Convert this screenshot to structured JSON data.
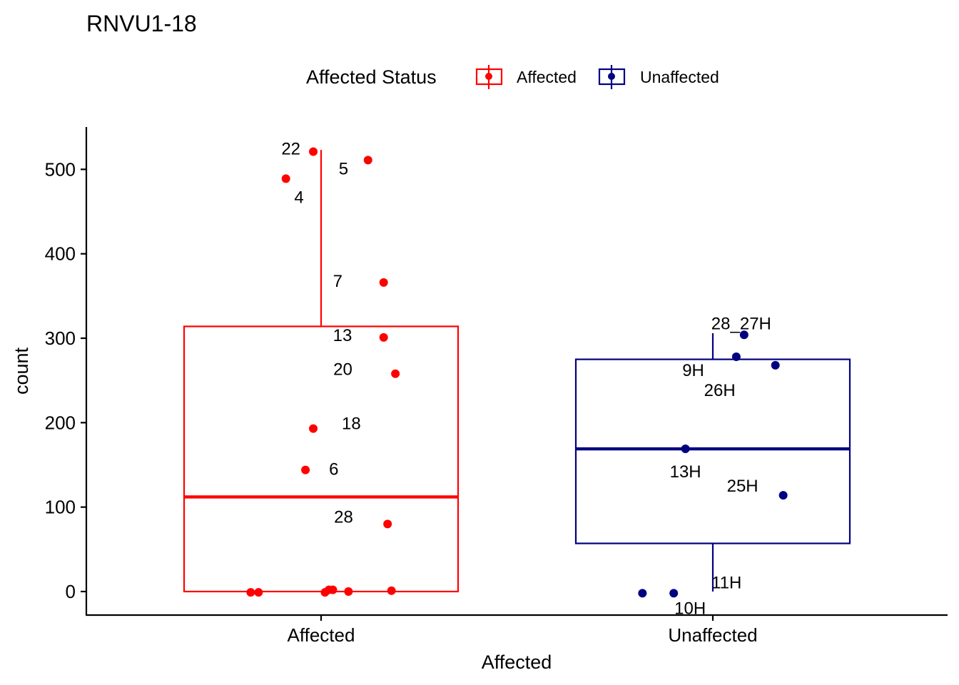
{
  "chart_data": {
    "type": "box",
    "title": "RNVU1-18",
    "xlabel": "Affected",
    "ylabel": "count",
    "ylim": [
      -28,
      550
    ],
    "yticks": [
      0,
      100,
      200,
      300,
      400,
      500
    ],
    "categories": [
      "Affected",
      "Unaffected"
    ],
    "legend": {
      "title": "Affected Status",
      "position": "top",
      "entries": [
        "Affected",
        "Unaffected"
      ]
    },
    "series": [
      {
        "name": "Affected",
        "color": "#ff0000",
        "box": {
          "q1": 0,
          "median": 112,
          "q3": 314,
          "whisker_low": 0,
          "whisker_high": 523
        },
        "points": [
          {
            "x_jitter": -0.02,
            "y": 521,
            "label": "22"
          },
          {
            "x_jitter": 0.12,
            "y": 511,
            "label": "5"
          },
          {
            "x_jitter": -0.09,
            "y": 489,
            "label": "4"
          },
          {
            "x_jitter": 0.16,
            "y": 366,
            "label": "7"
          },
          {
            "x_jitter": 0.16,
            "y": 301,
            "label": "13"
          },
          {
            "x_jitter": 0.19,
            "y": 258,
            "label": "20"
          },
          {
            "x_jitter": -0.02,
            "y": 193,
            "label": "18"
          },
          {
            "x_jitter": -0.04,
            "y": 144,
            "label": "6"
          },
          {
            "x_jitter": 0.17,
            "y": 80,
            "label": "28"
          },
          {
            "x_jitter": -0.18,
            "y": -1,
            "label": ""
          },
          {
            "x_jitter": -0.16,
            "y": -1,
            "label": ""
          },
          {
            "x_jitter": 0.01,
            "y": -1,
            "label": ""
          },
          {
            "x_jitter": 0.02,
            "y": 2,
            "label": ""
          },
          {
            "x_jitter": 0.03,
            "y": 2,
            "label": ""
          },
          {
            "x_jitter": 0.07,
            "y": 0,
            "label": ""
          },
          {
            "x_jitter": 0.18,
            "y": 1,
            "label": ""
          }
        ]
      },
      {
        "name": "Unaffected",
        "color": "#000080",
        "box": {
          "q1": 57,
          "median": 169,
          "q3": 275,
          "whisker_low": 0,
          "whisker_high": 306
        },
        "points": [
          {
            "x_jitter": 0.08,
            "y": 304,
            "label": "28_27H"
          },
          {
            "x_jitter": 0.06,
            "y": 278,
            "label": "9H"
          },
          {
            "x_jitter": 0.16,
            "y": 268,
            "label": "26H"
          },
          {
            "x_jitter": -0.07,
            "y": 169,
            "label": "13H"
          },
          {
            "x_jitter": 0.18,
            "y": 114,
            "label": "25H"
          },
          {
            "x_jitter": -0.18,
            "y": -2,
            "label": "11H"
          },
          {
            "x_jitter": -0.1,
            "y": -2,
            "label": "10H"
          }
        ]
      }
    ]
  },
  "colors": {
    "affected": "#ff0000",
    "unaffected": "#000080",
    "axis": "#000000"
  }
}
